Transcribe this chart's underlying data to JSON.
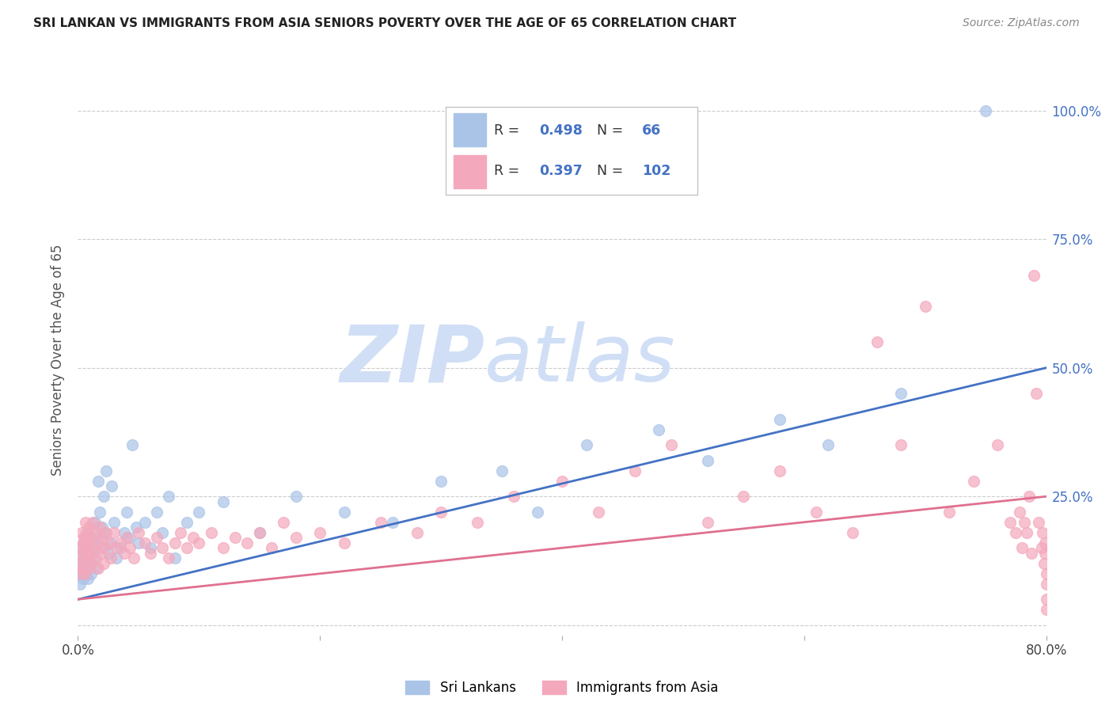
{
  "title": "SRI LANKAN VS IMMIGRANTS FROM ASIA SENIORS POVERTY OVER THE AGE OF 65 CORRELATION CHART",
  "source": "Source: ZipAtlas.com",
  "ylabel": "Seniors Poverty Over the Age of 65",
  "xlim": [
    0.0,
    0.8
  ],
  "ylim": [
    -0.02,
    1.05
  ],
  "blue_color": "#aac4e8",
  "pink_color": "#f4a8bc",
  "blue_line_color": "#4472c4",
  "pink_line_color": "#e07090",
  "right_tick_color": "#4472c4",
  "title_color": "#222222",
  "watermark_zip": "ZIP",
  "watermark_atlas": "atlas",
  "watermark_color": "#d0dff5",
  "R_blue": 0.498,
  "N_blue": 66,
  "R_pink": 0.397,
  "N_pink": 102,
  "blue_line_x0": 0.0,
  "blue_line_y0": 0.05,
  "blue_line_x1": 0.8,
  "blue_line_y1": 0.5,
  "pink_line_x0": 0.0,
  "pink_line_y0": 0.05,
  "pink_line_x1": 0.8,
  "pink_line_y1": 0.25,
  "sri_lankan_x": [
    0.001,
    0.002,
    0.002,
    0.003,
    0.003,
    0.004,
    0.004,
    0.005,
    0.005,
    0.006,
    0.006,
    0.007,
    0.007,
    0.008,
    0.008,
    0.009,
    0.01,
    0.01,
    0.011,
    0.012,
    0.013,
    0.014,
    0.015,
    0.016,
    0.017,
    0.018,
    0.019,
    0.02,
    0.021,
    0.022,
    0.023,
    0.025,
    0.027,
    0.028,
    0.03,
    0.032,
    0.035,
    0.038,
    0.04,
    0.042,
    0.045,
    0.048,
    0.05,
    0.055,
    0.06,
    0.065,
    0.07,
    0.075,
    0.08,
    0.09,
    0.1,
    0.12,
    0.15,
    0.18,
    0.22,
    0.26,
    0.3,
    0.35,
    0.38,
    0.42,
    0.48,
    0.52,
    0.58,
    0.62,
    0.68,
    0.75
  ],
  "sri_lankan_y": [
    0.1,
    0.08,
    0.13,
    0.11,
    0.15,
    0.09,
    0.16,
    0.12,
    0.14,
    0.1,
    0.17,
    0.13,
    0.11,
    0.15,
    0.09,
    0.18,
    0.12,
    0.14,
    0.1,
    0.16,
    0.13,
    0.2,
    0.11,
    0.17,
    0.28,
    0.22,
    0.15,
    0.19,
    0.25,
    0.18,
    0.3,
    0.14,
    0.16,
    0.27,
    0.2,
    0.13,
    0.15,
    0.18,
    0.22,
    0.17,
    0.35,
    0.19,
    0.16,
    0.2,
    0.15,
    0.22,
    0.18,
    0.25,
    0.13,
    0.2,
    0.22,
    0.24,
    0.18,
    0.25,
    0.22,
    0.2,
    0.28,
    0.3,
    0.22,
    0.35,
    0.38,
    0.32,
    0.4,
    0.35,
    0.45,
    1.0
  ],
  "asia_x": [
    0.001,
    0.002,
    0.002,
    0.003,
    0.003,
    0.004,
    0.004,
    0.005,
    0.005,
    0.006,
    0.006,
    0.007,
    0.007,
    0.008,
    0.008,
    0.009,
    0.009,
    0.01,
    0.01,
    0.011,
    0.012,
    0.013,
    0.014,
    0.015,
    0.016,
    0.017,
    0.018,
    0.019,
    0.02,
    0.021,
    0.022,
    0.023,
    0.025,
    0.027,
    0.03,
    0.032,
    0.035,
    0.038,
    0.04,
    0.043,
    0.046,
    0.05,
    0.055,
    0.06,
    0.065,
    0.07,
    0.075,
    0.08,
    0.085,
    0.09,
    0.095,
    0.1,
    0.11,
    0.12,
    0.13,
    0.14,
    0.15,
    0.16,
    0.17,
    0.18,
    0.2,
    0.22,
    0.25,
    0.28,
    0.3,
    0.33,
    0.36,
    0.4,
    0.43,
    0.46,
    0.49,
    0.52,
    0.55,
    0.58,
    0.61,
    0.64,
    0.66,
    0.68,
    0.7,
    0.72,
    0.74,
    0.76,
    0.77,
    0.775,
    0.778,
    0.78,
    0.782,
    0.784,
    0.786,
    0.788,
    0.79,
    0.792,
    0.794,
    0.796,
    0.797,
    0.798,
    0.799,
    0.799,
    0.8,
    0.8,
    0.8,
    0.8
  ],
  "asia_y": [
    0.12,
    0.15,
    0.1,
    0.18,
    0.11,
    0.14,
    0.16,
    0.13,
    0.17,
    0.1,
    0.2,
    0.15,
    0.18,
    0.13,
    0.16,
    0.11,
    0.19,
    0.14,
    0.17,
    0.12,
    0.2,
    0.15,
    0.18,
    0.13,
    0.16,
    0.11,
    0.19,
    0.14,
    0.17,
    0.12,
    0.15,
    0.18,
    0.16,
    0.13,
    0.18,
    0.15,
    0.16,
    0.14,
    0.17,
    0.15,
    0.13,
    0.18,
    0.16,
    0.14,
    0.17,
    0.15,
    0.13,
    0.16,
    0.18,
    0.15,
    0.17,
    0.16,
    0.18,
    0.15,
    0.17,
    0.16,
    0.18,
    0.15,
    0.2,
    0.17,
    0.18,
    0.16,
    0.2,
    0.18,
    0.22,
    0.2,
    0.25,
    0.28,
    0.22,
    0.3,
    0.35,
    0.2,
    0.25,
    0.3,
    0.22,
    0.18,
    0.55,
    0.35,
    0.62,
    0.22,
    0.28,
    0.35,
    0.2,
    0.18,
    0.22,
    0.15,
    0.2,
    0.18,
    0.25,
    0.14,
    0.68,
    0.45,
    0.2,
    0.15,
    0.18,
    0.12,
    0.16,
    0.14,
    0.1,
    0.08,
    0.05,
    0.03
  ]
}
